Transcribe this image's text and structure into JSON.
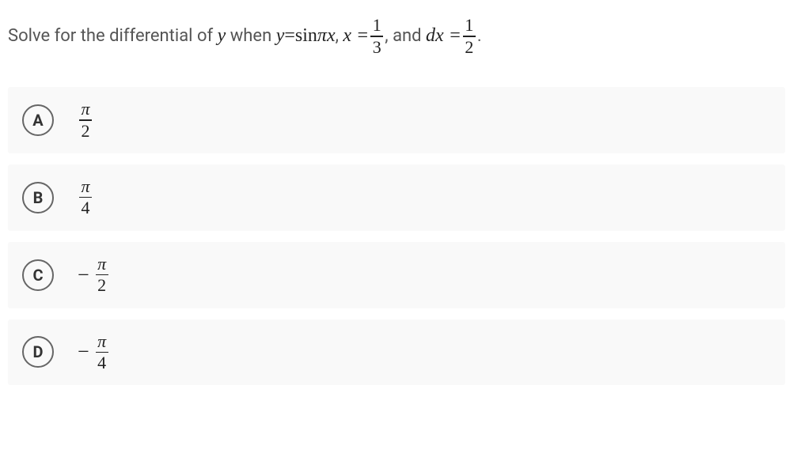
{
  "question": {
    "prefix": "Solve for the differential of ",
    "var_y": "y",
    "mid1": " when ",
    "eq_lhs": "y",
    "eq_eq": " = ",
    "eq_sin": "sin",
    "eq_pi": "π",
    "eq_x": "x",
    "comma1": ", ",
    "x_eq": "x = ",
    "frac1_num": "1",
    "frac1_den": "3",
    "comma2": ",",
    "and": " and ",
    "dx_eq": "dx = ",
    "frac2_num": "1",
    "frac2_den": "2",
    "period": "."
  },
  "options": [
    {
      "letter": "A",
      "sign": "",
      "num": "π",
      "den": "2"
    },
    {
      "letter": "B",
      "sign": "",
      "num": "π",
      "den": "4"
    },
    {
      "letter": "C",
      "sign": "−",
      "num": "π",
      "den": "2"
    },
    {
      "letter": "D",
      "sign": "−",
      "num": "π",
      "den": "4"
    }
  ],
  "styles": {
    "background_color": "#ffffff",
    "option_bg": "#f9f9f9",
    "text_color": "#555555",
    "math_color": "#222222",
    "letter_border": "#666666",
    "question_fontsize": 22,
    "option_fontsize": 22
  }
}
